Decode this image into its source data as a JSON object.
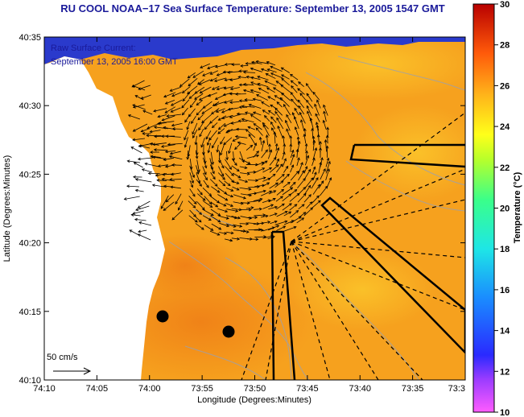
{
  "title": "RU COOL  NOAA−17  Sea Surface Temperature:  September 13, 2005 1547 GMT",
  "annotation": {
    "line1": "Raw Surface Current:",
    "line2": "September 13, 2005 16:00 GMT"
  },
  "scale_label": "50 cm/s",
  "colors": {
    "title": "#1a1a9a",
    "sst_base": "#f6a11e",
    "land": "#ffffff",
    "clouds": "#2a3acc"
  },
  "chart_data": {
    "type": "heatmap",
    "title": "RU COOL  NOAA−17  Sea Surface Temperature:  September 13, 2005 1547 GMT",
    "xlabel": "Longitude (Degrees:Minutes)",
    "ylabel": "Latitude (Degrees:Minutes)",
    "x_ticks": [
      "74:10",
      "74:05",
      "74:00",
      "73:55",
      "73:50",
      "73:45",
      "73:40",
      "73:35",
      "73:3"
    ],
    "y_ticks": [
      "40:35",
      "40:30",
      "40:25",
      "40:20",
      "40:15",
      "40:10"
    ],
    "colorbar": {
      "label": "Temperature (°C)",
      "ticks": [
        "30",
        "28",
        "26",
        "24",
        "22",
        "20",
        "18",
        "16",
        "14",
        "12",
        "10"
      ],
      "range": [
        10,
        30
      ]
    },
    "vector_scale_cm_s": 50
  }
}
